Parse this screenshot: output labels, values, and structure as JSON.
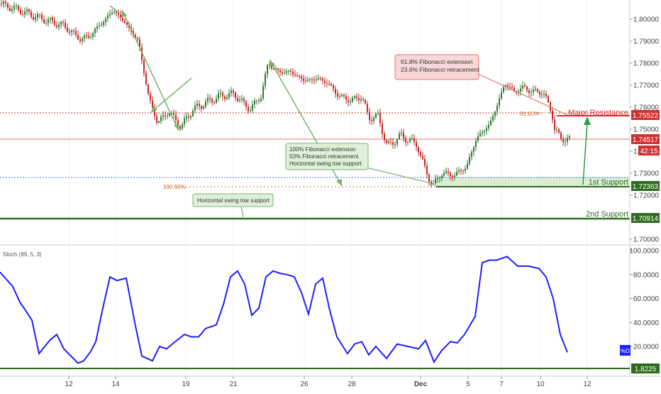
{
  "price_axis": {
    "ticks": [
      "1.80000",
      "1.79000",
      "1.78000",
      "1.77000",
      "1.76000",
      "1.75000",
      "1.74000",
      "1.73000",
      "1.72000",
      "1.70000"
    ],
    "tick_values": [
      1.8,
      1.79,
      1.78,
      1.77,
      1.76,
      1.75,
      1.74,
      1.73,
      1.72,
      1.7
    ],
    "badges": {
      "resistance": "1.75522",
      "current": "1.74517",
      "countdown": "42:15",
      "support1": "1.72363",
      "support2": "1.70914"
    }
  },
  "colors": {
    "bull": "#2e7d32",
    "bear": "#c62828",
    "resistance": "#d32f2f",
    "support": "#2e6b1e",
    "stoch": "#1f1fff",
    "arrow": "#7bb36b"
  },
  "annotations": {
    "resistance_label": "Major Resistance",
    "support1_label": "1st Support",
    "support2_label": "2nd Support",
    "fib_label_618": "61.80%",
    "fib_label_100": "100.00%",
    "callout_top": [
      "61.8% Fibonacci extension",
      "23.6% Fibonacci retracement"
    ],
    "callout_mid": [
      "100% Fibonacci extension",
      "50% Fibonacci retracement",
      "Horizontal swing low support"
    ],
    "callout_low": [
      "Horizontal swing low support"
    ]
  },
  "stoch_panel": {
    "title": "Stoch (89, 5, 3)",
    "ticks": [
      "100.0000",
      "80.0000",
      "60.0000",
      "40.0000",
      "20.0000"
    ],
    "tick_values": [
      100,
      80,
      60,
      40,
      20
    ],
    "badge_d": "%D",
    "badge_level": "1.8225"
  },
  "time_axis": {
    "labels": [
      "12",
      "14",
      "19",
      "21",
      "26",
      "28",
      "Dec",
      "5",
      "7",
      "10",
      "12"
    ]
  },
  "chart_data": {
    "type": "candlestick",
    "price_range": [
      1.695,
      1.806
    ],
    "levels": {
      "major_resistance": 1.75522,
      "current_price": 1.74517,
      "first_support": 1.72363,
      "second_support": 1.70914
    },
    "price_path": [
      [
        0,
        1.807
      ],
      [
        28,
        1.804
      ],
      [
        60,
        1.8
      ],
      [
        90,
        1.797
      ],
      [
        113,
        1.791
      ],
      [
        125,
        1.792
      ],
      [
        140,
        1.797
      ],
      [
        160,
        1.804
      ],
      [
        175,
        1.799
      ],
      [
        195,
        1.79
      ],
      [
        210,
        1.764
      ],
      [
        222,
        1.753
      ],
      [
        238,
        1.758
      ],
      [
        255,
        1.751
      ],
      [
        272,
        1.759
      ],
      [
        290,
        1.762
      ],
      [
        310,
        1.765
      ],
      [
        330,
        1.766
      ],
      [
        352,
        1.759
      ],
      [
        368,
        1.765
      ],
      [
        378,
        1.78
      ],
      [
        392,
        1.776
      ],
      [
        410,
        1.776
      ],
      [
        430,
        1.772
      ],
      [
        448,
        1.773
      ],
      [
        462,
        1.771
      ],
      [
        478,
        1.765
      ],
      [
        495,
        1.763
      ],
      [
        510,
        1.765
      ],
      [
        520,
        1.755
      ],
      [
        533,
        1.756
      ],
      [
        546,
        1.742
      ],
      [
        565,
        1.747
      ],
      [
        588,
        1.743
      ],
      [
        598,
        1.733
      ],
      [
        610,
        1.724
      ],
      [
        622,
        1.73
      ],
      [
        640,
        1.729
      ],
      [
        658,
        1.733
      ],
      [
        672,
        1.746
      ],
      [
        690,
        1.752
      ],
      [
        700,
        1.76
      ],
      [
        712,
        1.771
      ],
      [
        725,
        1.767
      ],
      [
        738,
        1.769
      ],
      [
        750,
        1.767
      ],
      [
        765,
        1.767
      ],
      [
        778,
        1.758
      ],
      [
        782,
        1.75
      ],
      [
        790,
        1.746
      ],
      [
        803,
        1.745
      ]
    ],
    "stochastic": {
      "name": "Stoch (89, 5, 3)",
      "x_index": [
        0,
        18,
        28,
        35,
        45,
        55,
        70,
        80,
        90,
        100,
        110,
        118,
        128,
        135,
        145,
        155,
        165,
        178,
        190,
        200,
        215,
        225,
        235,
        245,
        260,
        270,
        280,
        290,
        305,
        315,
        325,
        335,
        345,
        355,
        365,
        375,
        385,
        395,
        405,
        415,
        425,
        435,
        445,
        455,
        465,
        475,
        490,
        500,
        510,
        520,
        530,
        545,
        560,
        575,
        590,
        600,
        612,
        622,
        635,
        645,
        655,
        670,
        680,
        690,
        700,
        715,
        730,
        745,
        760,
        770,
        780,
        790,
        800
      ],
      "values": [
        82,
        70,
        57,
        51,
        42,
        14,
        25,
        30,
        18,
        12,
        6,
        8,
        16,
        24,
        52,
        78,
        75,
        77,
        40,
        12,
        8,
        20,
        18,
        23,
        30,
        28,
        28,
        35,
        38,
        55,
        78,
        83,
        72,
        46,
        52,
        78,
        83,
        81,
        80,
        78,
        65,
        47,
        72,
        77,
        50,
        28,
        14,
        22,
        24,
        13,
        20,
        10,
        22,
        20,
        18,
        25,
        7,
        16,
        24,
        23,
        30,
        45,
        90,
        92,
        92,
        95,
        87,
        87,
        85,
        78,
        60,
        30,
        15
      ]
    }
  }
}
